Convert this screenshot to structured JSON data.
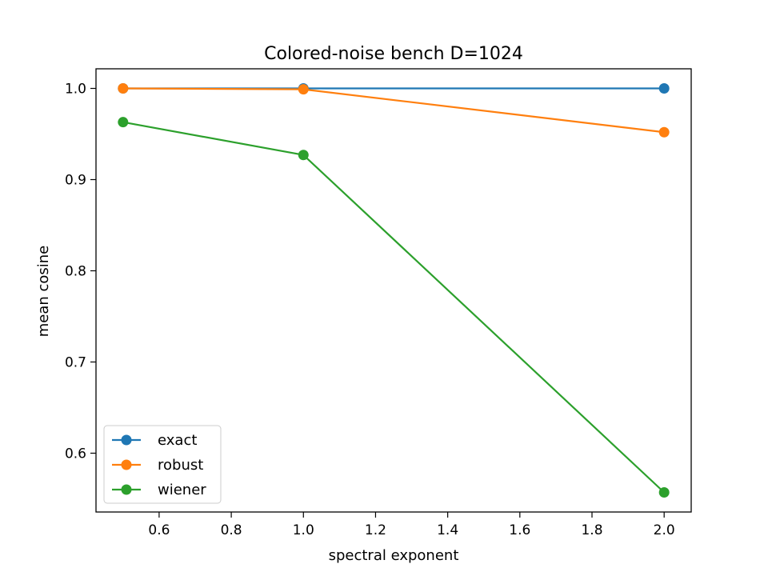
{
  "chart_data": {
    "type": "line",
    "title": "Colored-noise bench D=1024",
    "xlabel": "spectral exponent",
    "ylabel": "mean cosine",
    "x": [
      0.5,
      1.0,
      2.0
    ],
    "xlim": [
      0.425,
      2.075
    ],
    "ylim": [
      0.5355,
      1.0215
    ],
    "xticks": [
      0.6,
      0.8,
      1.0,
      1.2,
      1.4,
      1.6,
      1.8,
      2.0
    ],
    "xtick_labels": [
      "0.6",
      "0.8",
      "1.0",
      "1.2",
      "1.4",
      "1.6",
      "1.8",
      "2.0"
    ],
    "yticks": [
      0.6,
      0.7,
      0.8,
      0.9,
      1.0
    ],
    "ytick_labels": [
      "0.6",
      "0.7",
      "0.8",
      "0.9",
      "1.0"
    ],
    "grid": false,
    "legend_position": "lower-left",
    "series": [
      {
        "name": "exact",
        "color": "#1f77b4",
        "values": [
          1.0,
          1.0,
          1.0
        ]
      },
      {
        "name": "robust",
        "color": "#ff7f0e",
        "values": [
          1.0,
          0.999,
          0.952
        ]
      },
      {
        "name": "wiener",
        "color": "#2ca02c",
        "values": [
          0.963,
          0.927,
          0.557
        ]
      }
    ]
  }
}
